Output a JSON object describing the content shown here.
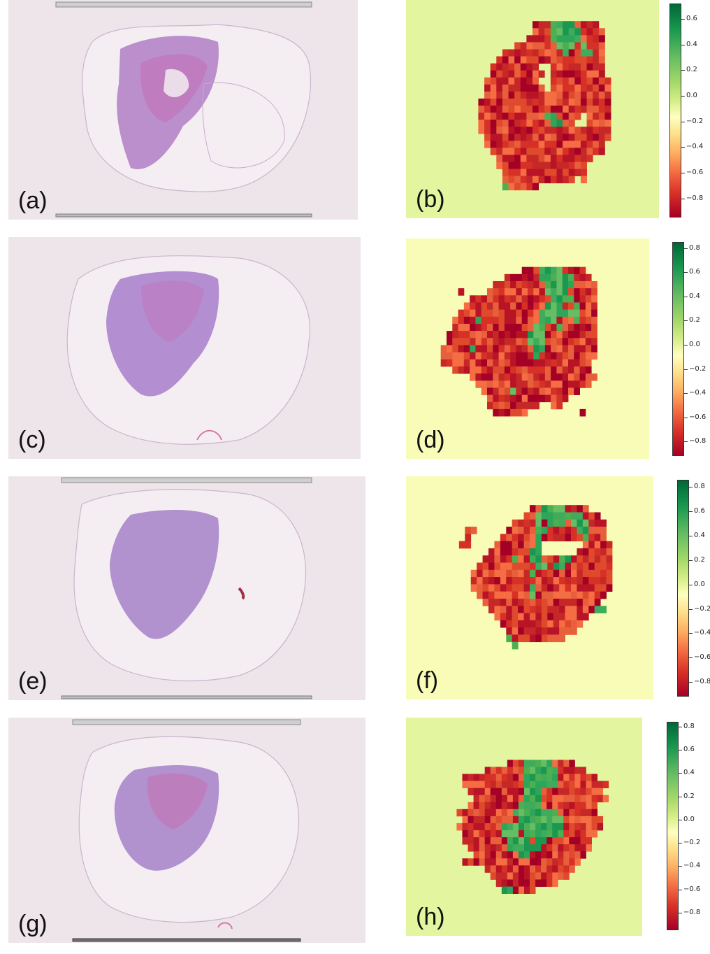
{
  "rows": [
    {
      "slide": {
        "label": "(a)",
        "rails": {
          "top": true,
          "bottom": true
        }
      },
      "heatmap": {
        "label": "(b)",
        "background": "#e3f59f",
        "cells_text": [
          "..........................................",
          "..........................................",
          "..........................................",
          ".....................RRRGGGGRRRR..........",
          ".....................RRRGGGGGRRRR.........",
          "....................RRRRGGGGGRRRR.........",
          "..................RRRRRRRGGGRGRRR.........",
          "................RRRRRRRRRRGRRGGRR.........",
          "...............RRRRRRRRRRRRRRRRRR.........",
          "..............RRRRRRRR..RRRRRRRRR.........",
          "..............RRRRRRRRR.RRRRRRRRR.........",
          ".............RRRRRRRRR..RRRRRRRRRR........",
          ".............RRRRRRRRRR.RRRRRRRRRR........",
          ".............RRRRRRRRRRRRRRRRRRRRR........",
          "............RRRRRRRRRRRRRRRRRRRRRR........",
          "............RRRRRRRRRRRRRRRRRRRRRR........",
          "............RRRRRRRRRRRGGRRRR.RRRR........",
          "............RRRRRRRRRRRRGGRR..RRRR........",
          "............RRRRRRRRRRRRRRRRRRRRRR........",
          ".............RRRRRRRRRRRRRRRRRRRRR........",
          ".............RRRRRRRRRRRRRRRRRRRR.........",
          "..............RRRRRRRRRRRRRRRRRRR.........",
          "...............RRRRRRRRRRRRRRRR...........",
          "...............RRRRRRRRRRRRRRR............",
          "................RRRRRRRRRRRRRR............",
          "................RRRRRRRRRRRR.R............",
          "................GRRRRR....................",
          "..........................................",
          "..........................................",
          "..........................................",
          ".........................................."
        ]
      },
      "colorbar": {
        "ticks": [
          "0.6",
          "0.4",
          "0.2",
          "0.0",
          "−0.2",
          "−0.4",
          "−0.6",
          "−0.8"
        ],
        "range": [
          -0.95,
          0.72
        ]
      }
    },
    {
      "slide": {
        "label": "(c)",
        "rails": {
          "top": false,
          "bottom": false
        }
      },
      "heatmap": {
        "label": "(d)",
        "background": "#f8fcb6",
        "cells_text": [
          "..........................................",
          "..........................................",
          "..........................................",
          "..........................................",
          "....................RRRGGGGRRRR...........",
          ".................RRRRRRGGGGGGRRR..........",
          "...............RRRRRRRRRGGGGGRRRR.........",
          ".........R....RRRRRRRRRRGGGGRRRRR.........",
          "...........RRRRRRRRRRRRRRGGGGRRRR.........",
          "..........RRRRRRRRRRRRRRGGGRRGRRR.........",
          ".........RRRRRRRRRRRRRRGGGGGGGRRR.........",
          "........RRRRGRRRRRRRRRRGGGRRRGRRR.........",
          "........RRRRRRRRRRRRRRGGRRGRRRRRR.........",
          ".......RRRRRRRRRRRRRRGGGRRRRRRRRR.........",
          ".......RRRRRRRRRRRRRRGGGRRRRRRRRR.........",
          "......RRRRRGRRRRRRRRRRGGRRRRRRRRR.........",
          "......RRRRRRRRRRRRRRRRGRRRRRRRRRR.........",
          "......RRRRRRRRRRRRRRRRRRRRRRRRRR..........",
          "........RRRRRRRRRRRRRRRRRRRRRRRR..........",
          "...........RRRRRRRRRRRRRRRRRRRRRR.........",
          "............RRRRRRRRRRRRRRRRRRRR..........",
          ".............RRRRRGRRRRRRRRRRR............",
          "..............RRRRRRRRRRRRRR..............",
          "..............RRRRRRRRR..RR...............",
          "...............RRRRRR.........R...........",
          "..........................................",
          "..........................................",
          "..........................................",
          "..........................................",
          "..........................................",
          ".........................................."
        ]
      },
      "colorbar": {
        "ticks": [
          "0.8",
          "0.6",
          "0.4",
          "0.2",
          "0.0",
          "−0.2",
          "−0.4",
          "−0.6",
          "−0.8"
        ],
        "range": [
          -0.92,
          0.85
        ]
      }
    },
    {
      "slide": {
        "label": "(e)",
        "rails": {
          "top": true,
          "bottom": true
        }
      },
      "heatmap": {
        "label": "(f)",
        "background": "#f8fcb6",
        "cells_text": [
          "..........................................",
          "..........................................",
          "..........................................",
          "..........................................",
          ".....................RRGGGGRRRR...........",
          "....................RRGGGGGGGGRRR.........",
          "..................RRRRGRGGGRGGGRRR........",
          "..........RR.....RRRRRGGRRRRRGGRRR........",
          "..........R.....RRRRRRGRRRRRRRGRRR........",
          ".........RR....RRRRRRRG.......RRRRR.......",
          "..............RRRRRRRGG......RRRRRR.......",
          ".............RRRRRGRRGGRRRGGRRRRRRR.......",
          "............RRRRRRRRRRGGRGGRRRRRRRR.......",
          "...........RRRRRRRRRRGRRRRRRRRRRRRR.......",
          "...........RRRRRRRRRRRRRRRRRRRRRRRR.......",
          "...........RRRRRRRRRRGRRRRRRRRRRRRR.......",
          "............RRRRRRRRRGRRRRRRRRRRRR........",
          ".............RRRRRRRRRRRRRRRRRRRR.........",
          "..............RRRRRRRRRRRRRRRRRRGG........",
          "...............RRRRRRRRRRRRRRRR...........",
          "................RRRRRRRRRRRRRR............",
          ".................RRRRRRRRRRRR.............",
          ".................GRRRRRRRRR...............",
          "..................G.......................",
          "..........................................",
          "..........................................",
          "..........................................",
          "..........................................",
          "..........................................",
          "..........................................",
          ".........................................."
        ]
      },
      "colorbar": {
        "ticks": [
          "0.8",
          "0.6",
          "0.4",
          "0.2",
          "0.0",
          "−0.2",
          "−0.4",
          "−0.6",
          "−0.8"
        ],
        "range": [
          -0.92,
          0.86
        ]
      }
    },
    {
      "slide": {
        "label": "(g)",
        "rails": {
          "top": true,
          "bottom": true
        }
      },
      "heatmap": {
        "label": "(h)",
        "background": "#e3f59f",
        "cells_text": [
          "..........................................",
          "..........................................",
          "..........................................",
          "..........................................",
          "..........................................",
          "..........................................",
          "..................RRRGGGGGRRRR............",
          "..............RRRRRRRGGGGGGRRRRR..........",
          "..........RRRRRRRRRRRGGGGGGRRRRRRR........",
          "..........RRRRRRRRRRRGGGGGGRRRRRRRRR......",
          "...........RRRRRRRRRRGGGRRRRRRRRRRR.......",
          "............RRRRRRRRRGGGRRRRRRRRRRRR......",
          "...........RRRRRRRRRGGGGRRRRRRRRRR........",
          ".........RRRRRRRRRRGGGGGGGGRRRRRRR........",
          "..........RRRRRRRRRRGGGGGGGGRRRRRRR.......",
          ".........RRRRRRRRGGGGGGGGGGGRRRRRRR.......",
          "..........RRRRRRRGGGRGGGGGGGRRRRRR........",
          "..........RRRRRRRRGGGGRGGRRRRRRRR.........",
          "...........RRRRRRRGGGGGGRRRRRRRRR.........",
          "............RRRRRRRRGGRRRRRRRRRR..........",
          "..........RRRRRRRRRRRRRRRRRRRRR...........",
          "..............RRRRRRRRRRRRRRRR............",
          "...............RRRRRRRRRRRRRR.............",
          "................RRRRRRRRRRR...............",
          ".................GGRRRR...................",
          "..........................................",
          "..........................................",
          "..........................................",
          "..........................................",
          "..........................................",
          ".........................................."
        ]
      },
      "colorbar": {
        "ticks": [
          "0.8",
          "0.6",
          "0.4",
          "0.2",
          "0.0",
          "−0.2",
          "−0.4",
          "−0.6",
          "−0.8"
        ],
        "range": [
          -0.95,
          0.84
        ]
      }
    }
  ]
}
